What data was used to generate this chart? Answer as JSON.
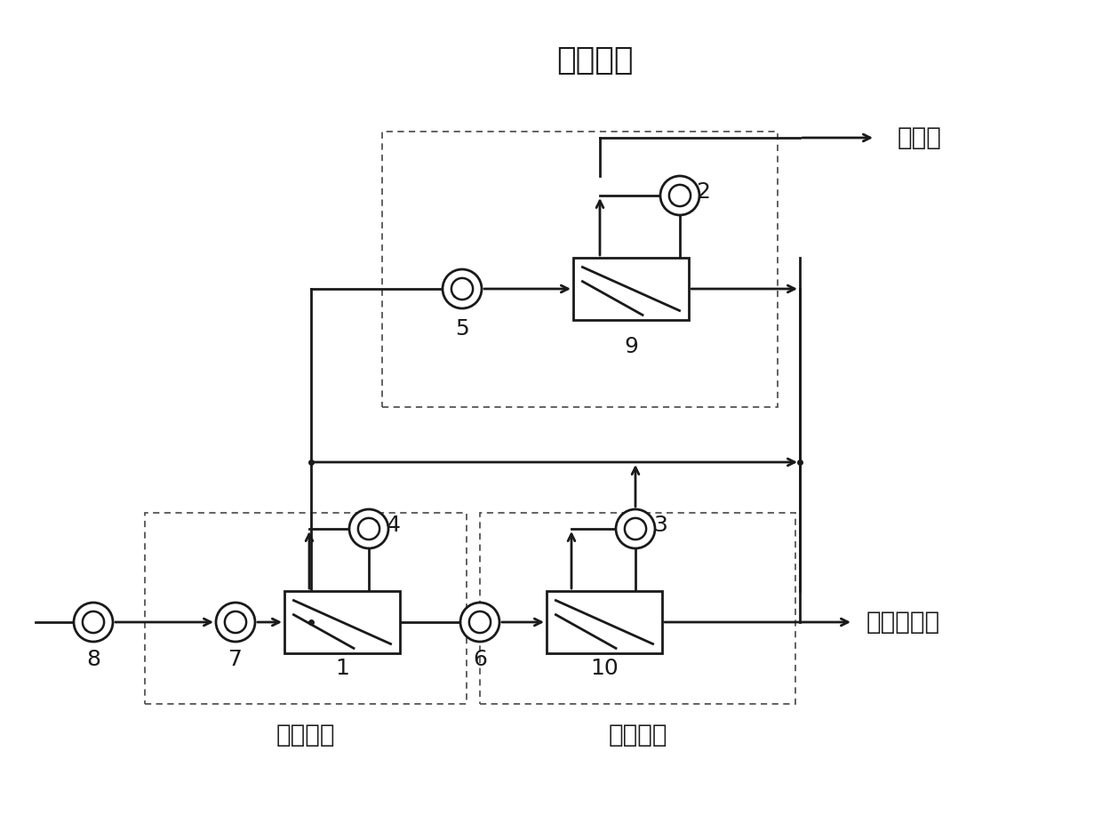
{
  "title": "第三级膜",
  "label_stage1": "第一级膜",
  "label_stage2": "第二级膜",
  "label_conc": "浓缩液",
  "label_drain": "达标外排水",
  "bg_color": "#ffffff",
  "line_color": "#1a1a1a",
  "dashed_color": "#555555",
  "font_size_title": 26,
  "font_size_label": 20,
  "font_size_num": 18,
  "figw": 12.4,
  "figh": 9.35,
  "dpi": 100
}
